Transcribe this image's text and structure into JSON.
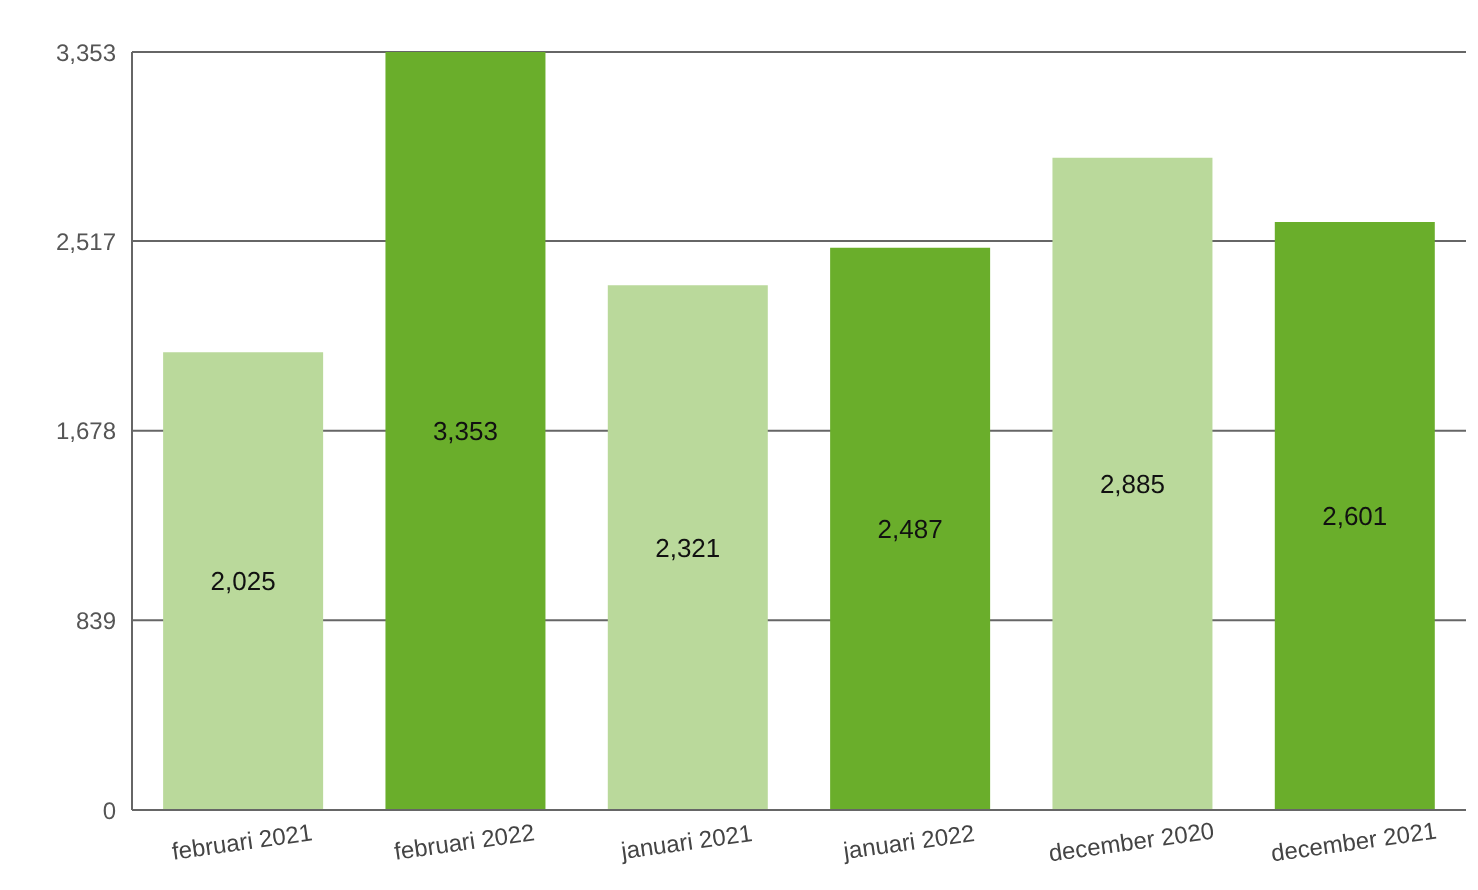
{
  "chart_data": {
    "type": "bar",
    "categories": [
      "februari 2021",
      "februari 2022",
      "januari 2021",
      "januari 2022",
      "december 2020",
      "december 2021"
    ],
    "values": [
      2025,
      3353,
      2321,
      2487,
      2885,
      2601
    ],
    "colors": [
      "#bad99b",
      "#6aae2b",
      "#bad99b",
      "#6aae2b",
      "#bad99b",
      "#6aae2b"
    ],
    "value_labels": [
      "2,025",
      "3,353",
      "2,321",
      "2,487",
      "2,885",
      "2,601"
    ],
    "ylim": [
      0,
      3353
    ],
    "yticks": [
      0,
      {
        "value": 839,
        "label": "839"
      },
      {
        "value": 1678,
        "label": "1,678"
      },
      {
        "value": 2517,
        "label": "2,517"
      },
      {
        "value": 3353,
        "label": "3,353"
      }
    ],
    "grid": "y"
  }
}
